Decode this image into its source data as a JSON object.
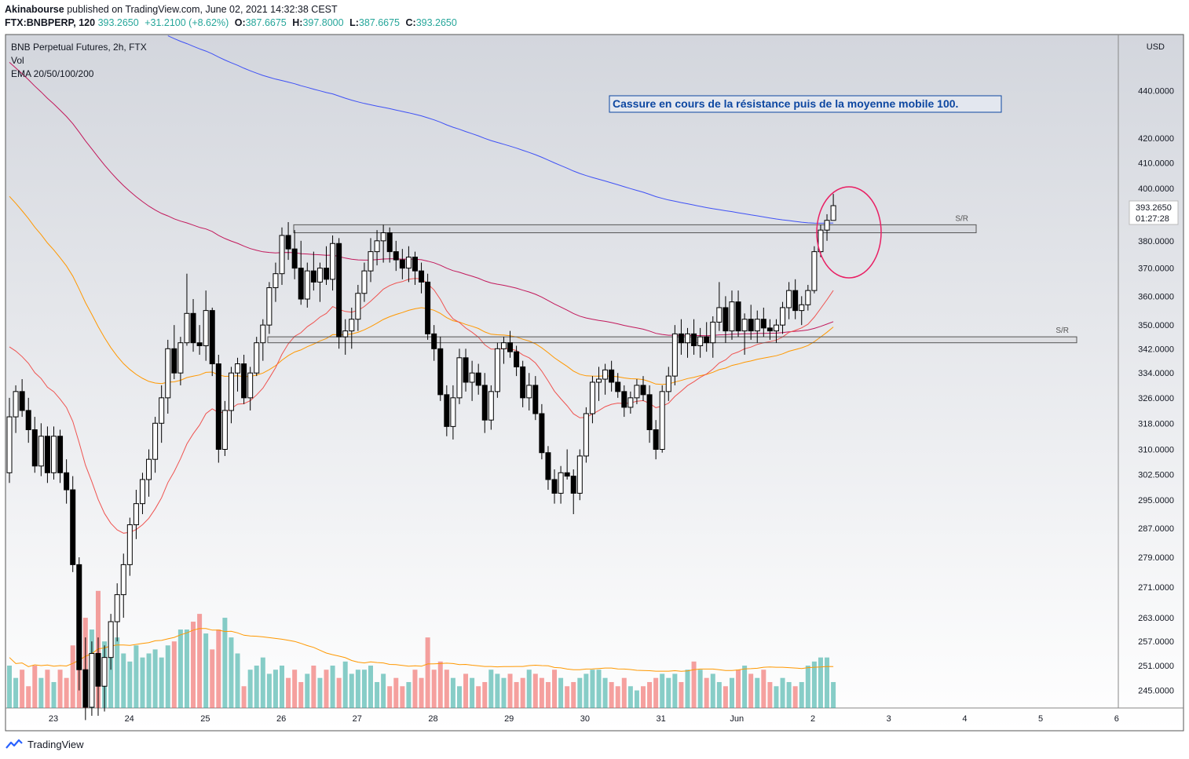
{
  "header": {
    "publisher": "Akinabourse",
    "published_text": "published on TradingView.com, June 02, 2021 14:32:38 CEST",
    "symbol": "FTX:BNBPERP, 120",
    "last": "393.2650",
    "change": "+31.2100 (+8.62%)",
    "o_label": "O:",
    "o": "387.6675",
    "h_label": "H:",
    "h": "397.8000",
    "l_label": "L:",
    "l": "387.6675",
    "c_label": "C:",
    "c": "393.2650"
  },
  "legend": {
    "title": "BNB Perpetual Futures, 2h, FTX",
    "vol": "Vol",
    "ema": "EMA 20/50/100/200"
  },
  "currency": "USD",
  "annotation": "Cassure en cours de la résistance puis de la moyenne mobile 100.",
  "sr_label": "S/R",
  "price_tag": {
    "price": "393.2650",
    "countdown": "01:27:28"
  },
  "footer": {
    "brand": "TradingView"
  },
  "colors": {
    "up": "#ffffff",
    "down": "#000000",
    "vol_up": "#26a69a",
    "vol_down": "#ef5350",
    "ema20": "#ef5350",
    "ema50": "#ff9800",
    "ema100": "#c2185b",
    "ema200": "#3f51f5",
    "annotation": "#0d47a1",
    "circle": "#e91e63"
  },
  "chart_data": {
    "type": "candlestick",
    "title": "BNB Perpetual Futures, 2h, FTX",
    "x_ticks": [
      "23",
      "24",
      "25",
      "26",
      "27",
      "28",
      "29",
      "30",
      "31",
      "Jun",
      "2",
      "3",
      "4",
      "5",
      "6"
    ],
    "y_ticks": [
      "440.0000",
      "420.0000",
      "410.0000",
      "400.0000",
      "380.0000",
      "370.0000",
      "360.0000",
      "350.0000",
      "342.0000",
      "334.0000",
      "326.0000",
      "318.0000",
      "310.0000",
      "302.5000",
      "295.0000",
      "287.0000",
      "279.0000",
      "271.0000",
      "263.0000",
      "257.0000",
      "251.0000",
      "245.0000"
    ],
    "y_scale": "log",
    "y_range": [
      239,
      465
    ],
    "support_resistance": [
      {
        "label": "S/R",
        "low": 383,
        "high": 386
      },
      {
        "label": "S/R",
        "low": 344,
        "high": 346
      }
    ],
    "candles": [
      {
        "t": "22 23:00",
        "o": 303,
        "h": 326,
        "l": 300,
        "c": 320
      },
      {
        "t": "23 01:00",
        "o": 320,
        "h": 330,
        "l": 315,
        "c": 328
      },
      {
        "t": "23 03:00",
        "o": 328,
        "h": 332,
        "l": 320,
        "c": 322
      },
      {
        "t": "23 05:00",
        "o": 322,
        "h": 326,
        "l": 312,
        "c": 316
      },
      {
        "t": "23 07:00",
        "o": 316,
        "h": 320,
        "l": 303,
        "c": 305
      },
      {
        "t": "23 09:00",
        "o": 305,
        "h": 318,
        "l": 302,
        "c": 314
      },
      {
        "t": "23 11:00",
        "o": 314,
        "h": 317,
        "l": 300,
        "c": 303
      },
      {
        "t": "23 13:00",
        "o": 303,
        "h": 317,
        "l": 301,
        "c": 314
      },
      {
        "t": "23 15:00",
        "o": 314,
        "h": 316,
        "l": 300,
        "c": 303
      },
      {
        "t": "23 17:00",
        "o": 303,
        "h": 307,
        "l": 294,
        "c": 298
      },
      {
        "t": "23 19:00",
        "o": 298,
        "h": 302,
        "l": 275,
        "c": 277
      },
      {
        "t": "23 21:00",
        "o": 277,
        "h": 279,
        "l": 245,
        "c": 250
      },
      {
        "t": "23 23:00",
        "o": 250,
        "h": 258,
        "l": 238,
        "c": 241
      },
      {
        "t": "24 01:00",
        "o": 241,
        "h": 257,
        "l": 239,
        "c": 254
      },
      {
        "t": "24 03:00",
        "o": 254,
        "h": 258,
        "l": 239,
        "c": 246
      },
      {
        "t": "24 05:00",
        "o": 246,
        "h": 256,
        "l": 240,
        "c": 253
      },
      {
        "t": "24 07:00",
        "o": 253,
        "h": 264,
        "l": 250,
        "c": 262
      },
      {
        "t": "24 09:00",
        "o": 262,
        "h": 272,
        "l": 257,
        "c": 269
      },
      {
        "t": "24 11:00",
        "o": 269,
        "h": 280,
        "l": 263,
        "c": 277
      },
      {
        "t": "24 13:00",
        "o": 277,
        "h": 290,
        "l": 274,
        "c": 288
      },
      {
        "t": "24 15:00",
        "o": 288,
        "h": 298,
        "l": 284,
        "c": 294
      },
      {
        "t": "24 17:00",
        "o": 294,
        "h": 303,
        "l": 291,
        "c": 301
      },
      {
        "t": "24 19:00",
        "o": 301,
        "h": 310,
        "l": 296,
        "c": 307
      },
      {
        "t": "24 21:00",
        "o": 307,
        "h": 320,
        "l": 303,
        "c": 318
      },
      {
        "t": "24 23:00",
        "o": 318,
        "h": 330,
        "l": 312,
        "c": 326
      },
      {
        "t": "25 01:00",
        "o": 326,
        "h": 345,
        "l": 321,
        "c": 342
      },
      {
        "t": "25 03:00",
        "o": 342,
        "h": 350,
        "l": 332,
        "c": 334
      },
      {
        "t": "25 05:00",
        "o": 334,
        "h": 346,
        "l": 330,
        "c": 344
      },
      {
        "t": "25 07:00",
        "o": 344,
        "h": 368,
        "l": 343,
        "c": 354
      },
      {
        "t": "25 09:00",
        "o": 354,
        "h": 359,
        "l": 341,
        "c": 344
      },
      {
        "t": "25 11:00",
        "o": 344,
        "h": 350,
        "l": 340,
        "c": 343
      },
      {
        "t": "25 13:00",
        "o": 343,
        "h": 362,
        "l": 338,
        "c": 355
      },
      {
        "t": "25 15:00",
        "o": 355,
        "h": 356,
        "l": 333,
        "c": 337
      },
      {
        "t": "25 17:00",
        "o": 337,
        "h": 340,
        "l": 306,
        "c": 310
      },
      {
        "t": "25 19:00",
        "o": 310,
        "h": 325,
        "l": 308,
        "c": 322
      },
      {
        "t": "25 21:00",
        "o": 322,
        "h": 336,
        "l": 318,
        "c": 334
      },
      {
        "t": "25 23:00",
        "o": 334,
        "h": 339,
        "l": 328,
        "c": 337
      },
      {
        "t": "26 01:00",
        "o": 337,
        "h": 340,
        "l": 324,
        "c": 326
      },
      {
        "t": "26 03:00",
        "o": 326,
        "h": 336,
        "l": 322,
        "c": 334
      },
      {
        "t": "26 05:00",
        "o": 334,
        "h": 346,
        "l": 333,
        "c": 344
      },
      {
        "t": "26 07:00",
        "o": 344,
        "h": 352,
        "l": 338,
        "c": 350
      },
      {
        "t": "26 09:00",
        "o": 350,
        "h": 365,
        "l": 347,
        "c": 363
      },
      {
        "t": "26 11:00",
        "o": 363,
        "h": 372,
        "l": 358,
        "c": 368
      },
      {
        "t": "26 13:00",
        "o": 368,
        "h": 385,
        "l": 364,
        "c": 382
      },
      {
        "t": "26 15:00",
        "o": 382,
        "h": 387,
        "l": 373,
        "c": 377
      },
      {
        "t": "26 17:00",
        "o": 377,
        "h": 384,
        "l": 366,
        "c": 370
      },
      {
        "t": "26 19:00",
        "o": 370,
        "h": 380,
        "l": 357,
        "c": 359
      },
      {
        "t": "26 21:00",
        "o": 359,
        "h": 372,
        "l": 356,
        "c": 369
      },
      {
        "t": "26 23:00",
        "o": 369,
        "h": 376,
        "l": 362,
        "c": 365
      },
      {
        "t": "27 01:00",
        "o": 365,
        "h": 372,
        "l": 358,
        "c": 370
      },
      {
        "t": "27 03:00",
        "o": 370,
        "h": 378,
        "l": 364,
        "c": 366
      },
      {
        "t": "27 05:00",
        "o": 366,
        "h": 382,
        "l": 362,
        "c": 379
      },
      {
        "t": "27 07:00",
        "o": 379,
        "h": 381,
        "l": 342,
        "c": 346
      },
      {
        "t": "27 09:00",
        "o": 346,
        "h": 352,
        "l": 340,
        "c": 348
      },
      {
        "t": "27 11:00",
        "o": 348,
        "h": 356,
        "l": 342,
        "c": 352
      },
      {
        "t": "27 13:00",
        "o": 352,
        "h": 364,
        "l": 348,
        "c": 361
      },
      {
        "t": "27 15:00",
        "o": 361,
        "h": 372,
        "l": 358,
        "c": 369
      },
      {
        "t": "27 17:00",
        "o": 369,
        "h": 381,
        "l": 365,
        "c": 376
      },
      {
        "t": "27 19:00",
        "o": 376,
        "h": 384,
        "l": 371,
        "c": 380
      },
      {
        "t": "27 21:00",
        "o": 380,
        "h": 386,
        "l": 372,
        "c": 383
      },
      {
        "t": "27 23:00",
        "o": 383,
        "h": 385,
        "l": 372,
        "c": 376
      },
      {
        "t": "28 01:00",
        "o": 376,
        "h": 380,
        "l": 369,
        "c": 373
      },
      {
        "t": "28 03:00",
        "o": 373,
        "h": 377,
        "l": 366,
        "c": 370
      },
      {
        "t": "28 05:00",
        "o": 370,
        "h": 378,
        "l": 365,
        "c": 374
      },
      {
        "t": "28 07:00",
        "o": 374,
        "h": 376,
        "l": 364,
        "c": 369
      },
      {
        "t": "28 09:00",
        "o": 369,
        "h": 372,
        "l": 361,
        "c": 365
      },
      {
        "t": "28 11:00",
        "o": 365,
        "h": 368,
        "l": 345,
        "c": 347
      },
      {
        "t": "28 13:00",
        "o": 347,
        "h": 350,
        "l": 338,
        "c": 342
      },
      {
        "t": "28 15:00",
        "o": 342,
        "h": 346,
        "l": 325,
        "c": 327
      },
      {
        "t": "28 17:00",
        "o": 327,
        "h": 330,
        "l": 314,
        "c": 317
      },
      {
        "t": "28 19:00",
        "o": 317,
        "h": 330,
        "l": 313,
        "c": 326
      },
      {
        "t": "28 21:00",
        "o": 326,
        "h": 342,
        "l": 324,
        "c": 339
      },
      {
        "t": "28 23:00",
        "o": 339,
        "h": 342,
        "l": 328,
        "c": 331
      },
      {
        "t": "29 01:00",
        "o": 331,
        "h": 338,
        "l": 325,
        "c": 334
      },
      {
        "t": "29 03:00",
        "o": 334,
        "h": 337,
        "l": 327,
        "c": 330
      },
      {
        "t": "29 05:00",
        "o": 330,
        "h": 334,
        "l": 315,
        "c": 319
      },
      {
        "t": "29 07:00",
        "o": 319,
        "h": 330,
        "l": 316,
        "c": 328
      },
      {
        "t": "29 09:00",
        "o": 328,
        "h": 344,
        "l": 326,
        "c": 342
      },
      {
        "t": "29 11:00",
        "o": 342,
        "h": 346,
        "l": 337,
        "c": 344
      },
      {
        "t": "29 13:00",
        "o": 344,
        "h": 348,
        "l": 339,
        "c": 341
      },
      {
        "t": "29 15:00",
        "o": 341,
        "h": 343,
        "l": 333,
        "c": 336
      },
      {
        "t": "29 17:00",
        "o": 336,
        "h": 338,
        "l": 323,
        "c": 326
      },
      {
        "t": "29 19:00",
        "o": 326,
        "h": 334,
        "l": 322,
        "c": 330
      },
      {
        "t": "29 21:00",
        "o": 330,
        "h": 333,
        "l": 319,
        "c": 321
      },
      {
        "t": "29 23:00",
        "o": 321,
        "h": 324,
        "l": 307,
        "c": 309
      },
      {
        "t": "30 01:00",
        "o": 309,
        "h": 311,
        "l": 298,
        "c": 301
      },
      {
        "t": "30 03:00",
        "o": 301,
        "h": 304,
        "l": 294,
        "c": 297
      },
      {
        "t": "30 05:00",
        "o": 297,
        "h": 305,
        "l": 294,
        "c": 303
      },
      {
        "t": "30 07:00",
        "o": 303,
        "h": 310,
        "l": 301,
        "c": 302
      },
      {
        "t": "30 09:00",
        "o": 302,
        "h": 304,
        "l": 291,
        "c": 297
      },
      {
        "t": "30 11:00",
        "o": 297,
        "h": 310,
        "l": 295,
        "c": 308
      },
      {
        "t": "30 13:00",
        "o": 308,
        "h": 323,
        "l": 306,
        "c": 321
      },
      {
        "t": "30 15:00",
        "o": 321,
        "h": 333,
        "l": 318,
        "c": 331
      },
      {
        "t": "30 17:00",
        "o": 331,
        "h": 336,
        "l": 325,
        "c": 332
      },
      {
        "t": "30 19:00",
        "o": 332,
        "h": 337,
        "l": 327,
        "c": 335
      },
      {
        "t": "30 21:00",
        "o": 335,
        "h": 338,
        "l": 328,
        "c": 331
      },
      {
        "t": "30 23:00",
        "o": 331,
        "h": 334,
        "l": 326,
        "c": 328
      },
      {
        "t": "31 01:00",
        "o": 328,
        "h": 330,
        "l": 320,
        "c": 323
      },
      {
        "t": "31 03:00",
        "o": 323,
        "h": 328,
        "l": 321,
        "c": 326
      },
      {
        "t": "31 05:00",
        "o": 326,
        "h": 332,
        "l": 324,
        "c": 330
      },
      {
        "t": "31 07:00",
        "o": 330,
        "h": 333,
        "l": 325,
        "c": 327
      },
      {
        "t": "31 09:00",
        "o": 327,
        "h": 330,
        "l": 312,
        "c": 316
      },
      {
        "t": "31 11:00",
        "o": 316,
        "h": 319,
        "l": 307,
        "c": 310
      },
      {
        "t": "31 13:00",
        "o": 310,
        "h": 330,
        "l": 309,
        "c": 328
      },
      {
        "t": "31 15:00",
        "o": 328,
        "h": 336,
        "l": 325,
        "c": 333
      },
      {
        "t": "31 17:00",
        "o": 333,
        "h": 350,
        "l": 330,
        "c": 347
      },
      {
        "t": "31 19:00",
        "o": 347,
        "h": 352,
        "l": 340,
        "c": 344
      },
      {
        "t": "31 21:00",
        "o": 344,
        "h": 349,
        "l": 339,
        "c": 347
      },
      {
        "t": "31 23:00",
        "o": 347,
        "h": 352,
        "l": 340,
        "c": 343
      },
      {
        "t": "Jun 01:00",
        "o": 343,
        "h": 349,
        "l": 339,
        "c": 346
      },
      {
        "t": "Jun 03:00",
        "o": 346,
        "h": 351,
        "l": 341,
        "c": 344
      },
      {
        "t": "Jun 05:00",
        "o": 344,
        "h": 353,
        "l": 339,
        "c": 351
      },
      {
        "t": "Jun 07:00",
        "o": 351,
        "h": 365,
        "l": 348,
        "c": 356
      },
      {
        "t": "Jun 09:00",
        "o": 356,
        "h": 360,
        "l": 344,
        "c": 348
      },
      {
        "t": "Jun 11:00",
        "o": 348,
        "h": 362,
        "l": 345,
        "c": 358
      },
      {
        "t": "Jun 13:00",
        "o": 358,
        "h": 362,
        "l": 346,
        "c": 348
      },
      {
        "t": "Jun 15:00",
        "o": 348,
        "h": 354,
        "l": 340,
        "c": 352
      },
      {
        "t": "Jun 17:00",
        "o": 352,
        "h": 357,
        "l": 345,
        "c": 348
      },
      {
        "t": "Jun 19:00",
        "o": 348,
        "h": 355,
        "l": 344,
        "c": 352
      },
      {
        "t": "Jun 21:00",
        "o": 352,
        "h": 356,
        "l": 346,
        "c": 349
      },
      {
        "t": "Jun 23:00",
        "o": 349,
        "h": 352,
        "l": 345,
        "c": 348
      },
      {
        "t": "2 01:00",
        "o": 348,
        "h": 352,
        "l": 344,
        "c": 350
      },
      {
        "t": "2 03:00",
        "o": 350,
        "h": 358,
        "l": 347,
        "c": 356
      },
      {
        "t": "2 05:00",
        "o": 356,
        "h": 365,
        "l": 352,
        "c": 362
      },
      {
        "t": "2 07:00",
        "o": 362,
        "h": 366,
        "l": 352,
        "c": 355
      },
      {
        "t": "2 09:00",
        "o": 355,
        "h": 360,
        "l": 350,
        "c": 357
      },
      {
        "t": "2 11:00",
        "o": 357,
        "h": 364,
        "l": 355,
        "c": 362
      },
      {
        "t": "2 13:00",
        "o": 362,
        "h": 378,
        "l": 361,
        "c": 376
      },
      {
        "t": "2 15:00",
        "o": 376,
        "h": 386,
        "l": 374,
        "c": 384
      },
      {
        "t": "2 17:00",
        "o": 384,
        "h": 390,
        "l": 380,
        "c": 387.6675
      },
      {
        "t": "2 19:00",
        "o": 387.6675,
        "h": 397.8,
        "l": 387.6675,
        "c": 393.265
      }
    ],
    "volume": [
      251,
      248,
      250,
      246,
      251,
      248,
      250,
      247,
      250,
      248,
      256,
      259,
      263,
      260,
      270,
      257,
      262,
      258,
      254,
      252,
      256,
      253,
      254,
      255,
      253,
      256,
      257,
      260,
      260,
      262,
      264,
      259,
      255,
      260,
      263,
      258,
      254,
      246,
      250,
      251,
      253,
      249,
      250,
      251,
      248,
      250,
      247,
      249,
      251,
      248,
      250,
      251,
      248,
      252,
      249,
      250,
      250,
      251,
      247,
      249,
      246,
      248,
      246,
      247,
      250,
      248,
      258,
      250,
      252,
      250,
      248,
      246,
      249,
      248,
      246,
      247,
      250,
      249,
      248,
      249,
      247,
      248,
      250,
      249,
      248,
      247,
      250,
      248,
      246,
      247,
      248,
      249,
      250,
      250,
      248,
      247,
      246,
      248,
      246,
      245,
      246,
      247,
      248,
      249,
      248,
      249,
      247,
      250,
      252,
      250,
      248,
      249,
      247,
      246,
      248,
      250,
      251,
      249,
      248,
      250,
      247,
      246,
      248,
      247,
      246,
      247,
      251,
      252,
      253,
      253,
      247
    ]
  }
}
